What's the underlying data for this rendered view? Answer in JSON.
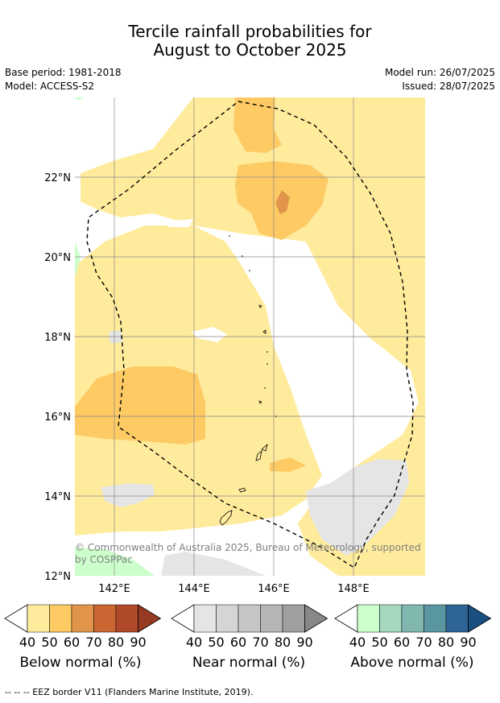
{
  "title": {
    "line1": "Tercile rainfall probabilities for",
    "line2": "August to October 2025"
  },
  "meta": {
    "base_period": "Base period: 1981-2018",
    "model": "Model: ACCESS-S2",
    "model_run": "Model run: 26/07/2025",
    "issued": "Issued: 28/07/2025"
  },
  "map": {
    "lat_labels": [
      "22°N",
      "20°N",
      "18°N",
      "16°N",
      "14°N",
      "12°N"
    ],
    "lon_labels": [
      "142°E",
      "144°E",
      "146°E",
      "148°E"
    ],
    "copyright_line1": "© Commonwealth of Australia 2025, Bureau of Meteorology, supported",
    "copyright_line2": "by COSPPac",
    "colors": {
      "below": [
        "#ffeb9c",
        "#fdca64",
        "#e0954a",
        "#cc6633",
        "#b04a2a",
        "#963a22"
      ],
      "near": [
        "#e5e5e5",
        "#d5d5d5",
        "#c5c5c5",
        "#b5b5b5",
        "#a0a0a0",
        "#888888"
      ],
      "above": [
        "#ccffcc",
        "#a6d8c0",
        "#80b8b0",
        "#5a96a0",
        "#2e6496",
        "#1a4f80"
      ]
    }
  },
  "legends": [
    {
      "id": "below",
      "label": "Below normal (%)",
      "ticks": [
        "40",
        "50",
        "60",
        "70",
        "80",
        "90"
      ]
    },
    {
      "id": "near",
      "label": "Near normal (%)",
      "ticks": [
        "40",
        "50",
        "60",
        "70",
        "80",
        "90"
      ]
    },
    {
      "id": "above",
      "label": "Above normal (%)",
      "ticks": [
        "40",
        "50",
        "60",
        "70",
        "80",
        "90"
      ]
    }
  ],
  "footer": "--  --  -- EEZ border V11 (Flanders Marine Institute, 2019)."
}
